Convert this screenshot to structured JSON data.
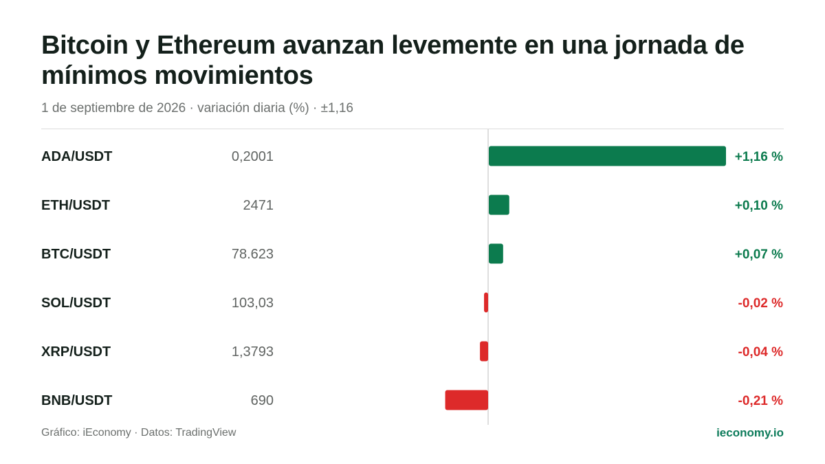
{
  "header": {
    "title": "Bitcoin y Ethereum avanzan levemente en una jornada de mínimos movimientos",
    "subtitle": "1 de septiembre de 2026 · variación diaria (%) · ±1,16"
  },
  "footer": {
    "source": "Gráfico: iEconomy · Datos: TradingView",
    "brand": "ieconomy.io"
  },
  "colors": {
    "positive": "#0c7b4e",
    "negative": "#dd2a2a",
    "axis": "#d4d4d4",
    "label": "#14201b",
    "price": "#5f6361"
  },
  "chart_data": {
    "type": "bar",
    "orientation": "horizontal",
    "categories": [
      "ADA/USDT",
      "ETH/USDT",
      "BTC/USDT",
      "SOL/USDT",
      "XRP/USDT",
      "BNB/USDT"
    ],
    "prices": [
      "0,2001",
      "2471",
      "78.623",
      "103,03",
      "1,3793",
      "690"
    ],
    "values": [
      1.16,
      0.1,
      0.07,
      -0.02,
      -0.04,
      -0.21
    ],
    "value_labels": [
      "+1,16 %",
      "+0,10 %",
      "+0,07 %",
      "-0,02 %",
      "-0,04 %",
      "-0,21 %"
    ],
    "xlim": [
      -1.16,
      1.16
    ],
    "grid": false,
    "legend": "none"
  }
}
